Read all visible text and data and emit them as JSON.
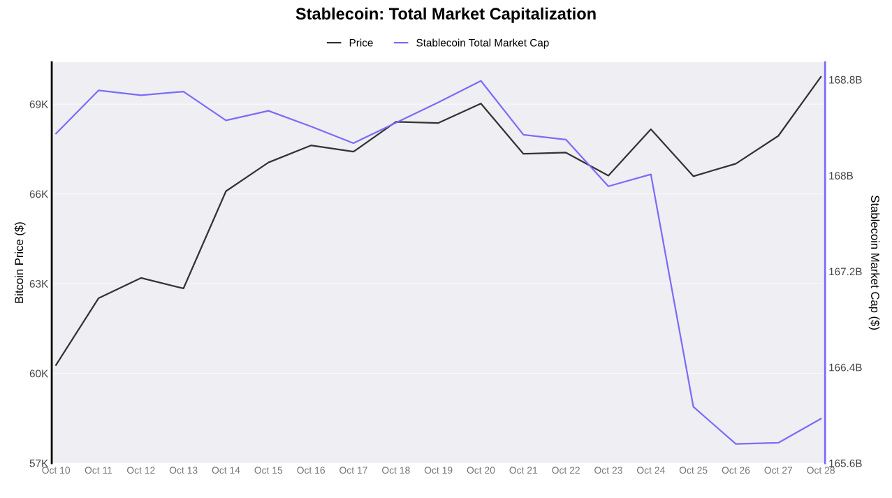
{
  "chart_data": {
    "type": "line",
    "title": "Stablecoin: Total Market Capitalization",
    "ylabel": "Bitcoin Price ($)",
    "y2label": "Stablecoin Market Cap ($)",
    "categories": [
      "Oct 10",
      "Oct 11",
      "Oct 12",
      "Oct 13",
      "Oct 14",
      "Oct 15",
      "Oct 16",
      "Oct 17",
      "Oct 18",
      "Oct 19",
      "Oct 20",
      "Oct 21",
      "Oct 22",
      "Oct 23",
      "Oct 24",
      "Oct 25",
      "Oct 26",
      "Oct 27",
      "Oct 28"
    ],
    "series": [
      {
        "name": "Price",
        "color": "#333333",
        "values": [
          60280,
          62510,
          63190,
          62840,
          66090,
          67050,
          67620,
          67410,
          68410,
          68370,
          69020,
          67340,
          67380,
          66610,
          68160,
          66590,
          67010,
          67940,
          69910
        ]
      },
      {
        "name": "Stablecoin Total Market Cap",
        "color": "#7b6cf6",
        "axis": "y2",
        "values": [
          168.35,
          168.71,
          168.67,
          168.7,
          168.46,
          168.54,
          168.41,
          168.27,
          168.44,
          168.61,
          168.79,
          168.34,
          168.3,
          167.91,
          168.01,
          166.07,
          165.76,
          165.77,
          165.97
        ]
      }
    ],
    "ylim": [
      57000,
      70400
    ],
    "yticks": [
      {
        "value": 57000,
        "label": "57K"
      },
      {
        "value": 60000,
        "label": "60K"
      },
      {
        "value": 63000,
        "label": "63K"
      },
      {
        "value": 66000,
        "label": "66K"
      },
      {
        "value": 69000,
        "label": "69K"
      }
    ],
    "y2lim": [
      165.6,
      168.945
    ],
    "y2ticks": [
      {
        "value": 165.6,
        "label": "165.6B"
      },
      {
        "value": 166.4,
        "label": "166.4B"
      },
      {
        "value": 167.2,
        "label": "167.2B"
      },
      {
        "value": 168.0,
        "label": "168B"
      },
      {
        "value": 168.8,
        "label": "168.8B"
      }
    ],
    "grid": "y",
    "legend": "top",
    "marker": "none",
    "line_style": "solid"
  }
}
